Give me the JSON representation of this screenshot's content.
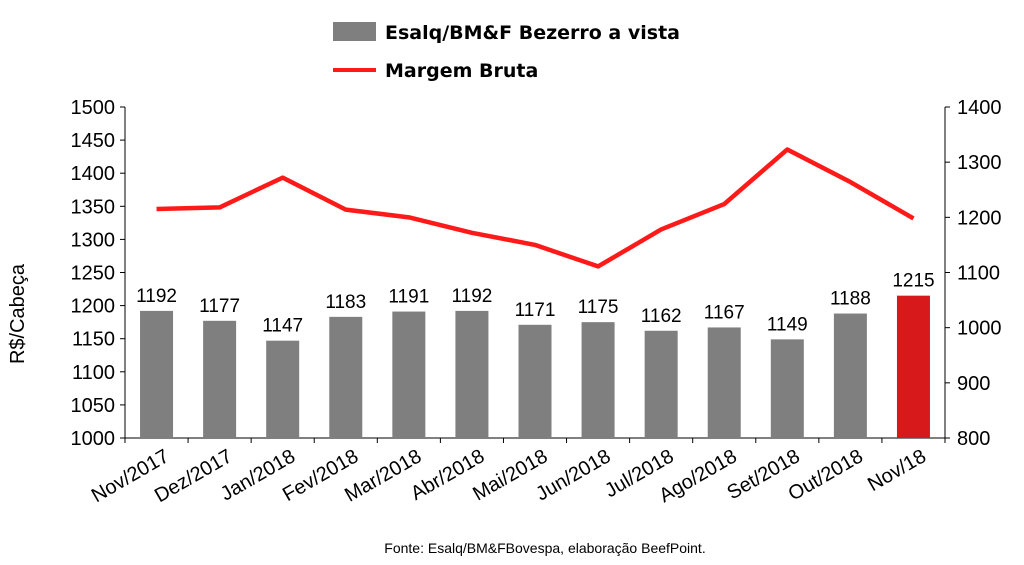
{
  "chart_data": {
    "type": "bar",
    "categories": [
      "Nov/2017",
      "Dez/2017",
      "Jan/2018",
      "Fev/2018",
      "Mar/2018",
      "Abr/2018",
      "Mai/2018",
      "Jun/2018",
      "Jul/2018",
      "Ago/2018",
      "Set/2018",
      "Out/2018",
      "Nov/18"
    ],
    "series": [
      {
        "name": "Esalq/BM&F Bezerro a vista",
        "type": "bar",
        "axis": "left",
        "values": [
          1192,
          1177,
          1147,
          1183,
          1191,
          1192,
          1171,
          1175,
          1162,
          1167,
          1149,
          1188,
          1215
        ],
        "color": "#7f7f7f",
        "highlight_color": "#d7191c",
        "highlight_index": 12
      },
      {
        "name": "Margem Bruta",
        "type": "line",
        "axis": "right",
        "values": [
          1215,
          1218,
          1272,
          1214,
          1200,
          1172,
          1150,
          1111,
          1178,
          1224,
          1323,
          1264,
          1198
        ],
        "color": "#ff1a1a"
      }
    ],
    "ylabel": "R$/Cabeça",
    "ylim": [
      1000,
      1500
    ],
    "yticks": [
      1000,
      1050,
      1100,
      1150,
      1200,
      1250,
      1300,
      1350,
      1400,
      1450,
      1500
    ],
    "y2lim": [
      800,
      1400
    ],
    "y2ticks": [
      800,
      900,
      1000,
      1100,
      1200,
      1300,
      1400
    ],
    "legend_position": "top",
    "grid": false
  },
  "source_note": "Fonte: Esalq/BM&FBovespa, elaboração BeefPoint."
}
